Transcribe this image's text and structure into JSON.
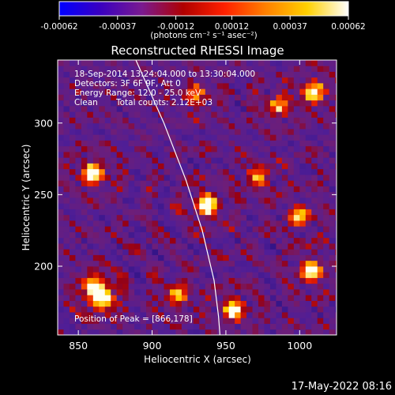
{
  "chart_data": {
    "type": "heatmap",
    "title": "Reconstructed RHESSI Image",
    "xlabel": "Heliocentric X (arcsec)",
    "ylabel": "Heliocentric Y (arcsec)",
    "xlim": [
      836,
      1025
    ],
    "ylim": [
      152,
      344
    ],
    "x_ticks": [
      850,
      900,
      950,
      1000
    ],
    "y_ticks": [
      200,
      250,
      300
    ],
    "colorbar": {
      "range": [
        -0.00062,
        0.00062
      ],
      "tick_values": [
        -0.00062,
        -0.00037,
        -0.00012,
        0.00012,
        0.00037,
        0.00062
      ],
      "tick_labels": [
        "-0.00062",
        "-0.00037",
        "-0.00012",
        "0.00012",
        "0.00037",
        "0.00062"
      ],
      "units_label": "(photons cm⁻² s⁻¹ asec⁻²)",
      "colors": [
        "#0000ff",
        "#3a00c0",
        "#7a1a90",
        "#b00000",
        "#ff2000",
        "#ff8000",
        "#ffd000",
        "#ffffff"
      ]
    },
    "annotations": {
      "time_range": "18-Sep-2014 13:24:04.000 to 13:30:04.000",
      "detectors": "Detectors: 3F 6F 9F, Att 0",
      "energy_range": "Energy Range: 12.0 - 25.0 keV",
      "clean": "Clean",
      "total_counts": "Total counts: 2.12E+03",
      "peak": "Position of Peak = [866,178]"
    },
    "peak_position": [
      866,
      178
    ],
    "bright_sources": [
      {
        "x": 866,
        "y": 178,
        "amp": 1.0
      },
      {
        "x": 861,
        "y": 186,
        "amp": 0.8
      },
      {
        "x": 937,
        "y": 243,
        "amp": 0.95
      },
      {
        "x": 860,
        "y": 265,
        "amp": 0.9
      },
      {
        "x": 955,
        "y": 170,
        "amp": 0.8
      },
      {
        "x": 1008,
        "y": 197,
        "amp": 0.85
      },
      {
        "x": 1010,
        "y": 322,
        "amp": 0.85
      },
      {
        "x": 985,
        "y": 312,
        "amp": 0.6
      },
      {
        "x": 917,
        "y": 180,
        "amp": 0.6
      },
      {
        "x": 972,
        "y": 262,
        "amp": 0.55
      },
      {
        "x": 1000,
        "y": 235,
        "amp": 0.6
      },
      {
        "x": 930,
        "y": 320,
        "amp": 0.5
      }
    ],
    "limb_arc": [
      [
        889,
        344
      ],
      [
        908,
        300
      ],
      [
        923,
        260
      ],
      [
        934,
        225
      ],
      [
        942,
        190
      ],
      [
        945,
        165
      ],
      [
        946,
        152
      ]
    ]
  },
  "footer": {
    "timestamp": "17-May-2022 08:16"
  }
}
